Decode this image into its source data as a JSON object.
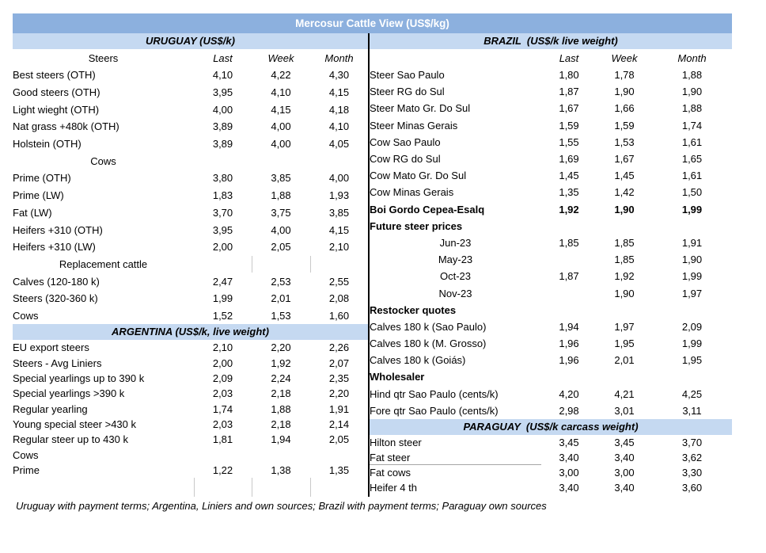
{
  "title": "Mercosur Cattle View (US$/kg)",
  "footer": "Uruguay with payment terms; Argentina, Liniers and own sources; Brazil with payment terms; Paraguay own sources",
  "colors": {
    "title_band": "#8CB0DE",
    "title_text": "#FFFFFF",
    "section_band": "#C5D9F1",
    "divider": "#000000",
    "faint_line": "#C9C9C9"
  },
  "columns": {
    "label_left": "Steers",
    "label_right": "",
    "last": "Last",
    "week": "Week",
    "month": "Month"
  },
  "chart_data": [
    {
      "type": "table",
      "title": "URUGUAY (US$/k)",
      "columns": [
        "Steers",
        "Last",
        "Week",
        "Month"
      ],
      "rows": [
        {
          "label": "Best steers (OTH)",
          "last": "4,10",
          "week": "4,22",
          "month": "4,30",
          "rtype": "data"
        },
        {
          "label": "Good steers (OTH)",
          "last": "3,95",
          "week": "4,10",
          "month": "4,15",
          "rtype": "data"
        },
        {
          "label": "Light wieght (OTH)",
          "last": "4,00",
          "week": "4,15",
          "month": "4,18",
          "rtype": "data"
        },
        {
          "label": "Nat grass +480k (OTH)",
          "last": "3,89",
          "week": "4,00",
          "month": "4,10",
          "rtype": "data"
        },
        {
          "label": "Holstein (OTH)",
          "last": "3,89",
          "week": "4,00",
          "month": "4,05",
          "rtype": "data"
        },
        {
          "label": "Cows",
          "last": "",
          "week": "",
          "month": "",
          "rtype": "subheader"
        },
        {
          "label": "Prime (OTH)",
          "last": "3,80",
          "week": "3,85",
          "month": "4,00",
          "rtype": "data"
        },
        {
          "label": "Prime (LW)",
          "last": "1,83",
          "week": "1,88",
          "month": "1,93",
          "rtype": "data"
        },
        {
          "label": "Fat (LW)",
          "last": "3,70",
          "week": "3,75",
          "month": "3,85",
          "rtype": "data"
        },
        {
          "label": "Heifers +310 (OTH)",
          "last": "3,95",
          "week": "4,00",
          "month": "4,15",
          "rtype": "data"
        },
        {
          "label": "Heifers +310 (LW)",
          "last": "2,00",
          "week": "2,05",
          "month": "2,10",
          "rtype": "data"
        },
        {
          "label": "Replacement cattle",
          "last": "",
          "week": "",
          "month": "",
          "rtype": "subheader-lines"
        },
        {
          "label": "Calves (120-180 k)",
          "last": "2,47",
          "week": "2,53",
          "month": "2,55",
          "rtype": "data"
        },
        {
          "label": "Steers (320-360 k)",
          "last": "1,99",
          "week": "2,01",
          "month": "2,08",
          "rtype": "data"
        },
        {
          "label": "Cows",
          "last": "1,52",
          "week": "1,53",
          "month": "1,60",
          "rtype": "data"
        }
      ]
    },
    {
      "type": "table",
      "title": "ARGENTINA (US$/k, live weight)",
      "columns": [
        "",
        "Last",
        "Week",
        "Month"
      ],
      "rows": [
        {
          "label": "EU export steers",
          "last": "2,10",
          "week": "2,20",
          "month": "2,26",
          "rtype": "data"
        },
        {
          "label": "Steers - Avg Liniers",
          "last": "2,00",
          "week": "1,92",
          "month": "2,07",
          "rtype": "data"
        },
        {
          "label": "Special yearlings up to 390 k",
          "last": "2,09",
          "week": "2,24",
          "month": "2,35",
          "rtype": "data"
        },
        {
          "label": "Special yearlings >390 k",
          "last": "2,03",
          "week": "2,18",
          "month": "2,20",
          "rtype": "data"
        },
        {
          "label": "Regular yearling",
          "last": "1,74",
          "week": "1,88",
          "month": "1,91",
          "rtype": "data"
        },
        {
          "label": "Young special steer >430 k",
          "last": "2,03",
          "week": "2,18",
          "month": "2,14",
          "rtype": "data"
        },
        {
          "label": "Regular steer up to 430 k",
          "last": "1,81",
          "week": "1,94",
          "month": "2,05",
          "rtype": "data"
        },
        {
          "label": "Cows",
          "last": "",
          "week": "",
          "month": "",
          "rtype": "data"
        },
        {
          "label": "Prime",
          "last": "1,22",
          "week": "1,38",
          "month": "1,35",
          "rtype": "data"
        },
        {
          "label": "",
          "last": "",
          "week": "",
          "month": "",
          "rtype": "empty-lines"
        }
      ]
    },
    {
      "type": "table",
      "title": "BRAZIL  (US$/k live weight)",
      "columns": [
        "",
        "Last",
        "Week",
        "Month"
      ],
      "rows": [
        {
          "label": "Steer Sao Paulo",
          "last": "1,80",
          "week": "1,78",
          "month": "1,88",
          "rtype": "data"
        },
        {
          "label": "Steer RG do Sul",
          "last": "1,87",
          "week": "1,90",
          "month": "1,90",
          "rtype": "data"
        },
        {
          "label": "Steer Mato Gr. Do Sul",
          "last": "1,67",
          "week": "1,66",
          "month": "1,88",
          "rtype": "data"
        },
        {
          "label": "Steer Minas Gerais",
          "last": "1,59",
          "week": "1,59",
          "month": "1,74",
          "rtype": "data"
        },
        {
          "label": "Cow Sao Paulo",
          "last": "1,55",
          "week": "1,53",
          "month": "1,61",
          "rtype": "data"
        },
        {
          "label": "Cow RG do Sul",
          "last": "1,69",
          "week": "1,67",
          "month": "1,65",
          "rtype": "data"
        },
        {
          "label": "Cow Mato Gr. Do Sul",
          "last": "1,45",
          "week": "1,45",
          "month": "1,61",
          "rtype": "data"
        },
        {
          "label": "Cow Minas Gerais",
          "last": "1,35",
          "week": "1,42",
          "month": "1,50",
          "rtype": "data"
        },
        {
          "label": "Boi Gordo Cepea-Esalq",
          "last": "1,92",
          "week": "1,90",
          "month": "1,99",
          "rtype": "bold-row"
        },
        {
          "label": "Future steer prices",
          "last": "",
          "week": "",
          "month": "",
          "rtype": "bold-label"
        },
        {
          "label": "Jun-23",
          "last": "1,85",
          "week": "1,85",
          "month": "1,91",
          "rtype": "month"
        },
        {
          "label": "May-23",
          "last": "",
          "week": "1,85",
          "month": "1,90",
          "rtype": "month"
        },
        {
          "label": "Oct-23",
          "last": "1,87",
          "week": "1,92",
          "month": "1,99",
          "rtype": "month"
        },
        {
          "label": "Nov-23",
          "last": "",
          "week": "1,90",
          "month": "1,97",
          "rtype": "month"
        },
        {
          "label": "Restocker quotes",
          "last": "",
          "week": "",
          "month": "",
          "rtype": "bold-label"
        },
        {
          "label": "Calves 180 k (Sao Paulo)",
          "last": "1,94",
          "week": "1,97",
          "month": "2,09",
          "rtype": "data"
        },
        {
          "label": "Calves 180 k (M. Grosso)",
          "last": "1,96",
          "week": "1,95",
          "month": "1,99",
          "rtype": "data"
        },
        {
          "label": "Calves 180 k (Goiás)",
          "last": "1,96",
          "week": "2,01",
          "month": "1,95",
          "rtype": "data"
        },
        {
          "label": "Wholesaler",
          "last": "",
          "week": "",
          "month": "",
          "rtype": "bold-label"
        },
        {
          "label": "Hind qtr Sao Paulo (cents/k)",
          "last": "4,20",
          "week": "4,21",
          "month": "4,25",
          "rtype": "data"
        },
        {
          "label": "Fore qtr Sao Paulo (cents/k)",
          "last": "2,98",
          "week": "3,01",
          "month": "3,11",
          "rtype": "data"
        }
      ]
    },
    {
      "type": "table",
      "title": "PARAGUAY  (US$/k carcass weight)",
      "columns": [
        "",
        "Last",
        "Week",
        "Month"
      ],
      "rows": [
        {
          "label": "Hilton steer",
          "last": "3,45",
          "week": "3,45",
          "month": "3,70",
          "rtype": "data"
        },
        {
          "label": "Fat steer",
          "last": "3,40",
          "week": "3,40",
          "month": "3,62",
          "rtype": "underline"
        },
        {
          "label": "Fat cows",
          "last": "3,00",
          "week": "3,00",
          "month": "3,30",
          "rtype": "data"
        },
        {
          "label": "Heifer 4 th",
          "last": "3,40",
          "week": "3,40",
          "month": "3,60",
          "rtype": "data"
        }
      ]
    }
  ]
}
